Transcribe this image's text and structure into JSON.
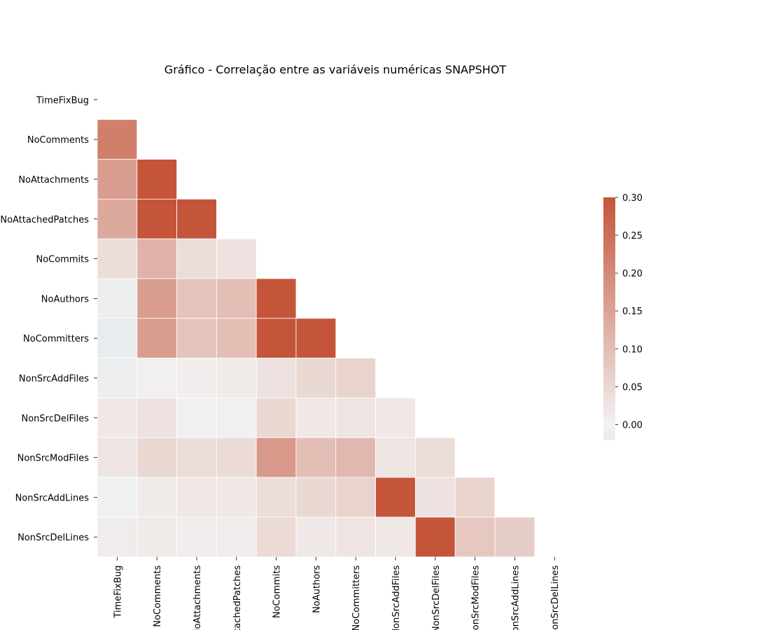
{
  "chart_data": {
    "type": "heatmap",
    "title": "Gráfico - Correlação entre as variáveis numéricas SNAPSHOT",
    "variables": [
      "TimeFixBug",
      "NoComments",
      "NoAttachments",
      "NoAttachedPatches",
      "NoCommits",
      "NoAuthors",
      "NoCommitters",
      "NonSrcAddFiles",
      "NonSrcDelFiles",
      "NonSrcModFiles",
      "NonSrcAddLines",
      "NonSrcDelLines"
    ],
    "x_tick_labels": [
      "TimeFixBug",
      "NoComments",
      "NoAttachments",
      "NoAttachedPatches",
      "NoCommits",
      "NoAuthors",
      "NoCommitters",
      "NonSrcAddFiles",
      "NonSrcDelFiles",
      "NonSrcModFiles",
      "NonSrcAddLines",
      "NonSrcDelLines"
    ],
    "y_tick_labels": [
      "TimeFixBug",
      "NoComments",
      "NoAttachments",
      "NoAttachedPatches",
      "NoCommits",
      "NoAuthors",
      "NoCommitters",
      "NonSrcAddFiles",
      "NonSrcDelFiles",
      "NonSrcModFiles",
      "NonSrcAddLines",
      "NonSrcDelLines"
    ],
    "mask": "upper-triangle-including-diagonal",
    "matrix": [
      [
        null,
        null,
        null,
        null,
        null,
        null,
        null,
        null,
        null,
        null,
        null,
        null
      ],
      [
        0.22,
        null,
        null,
        null,
        null,
        null,
        null,
        null,
        null,
        null,
        null,
        null
      ],
      [
        0.16,
        0.3,
        null,
        null,
        null,
        null,
        null,
        null,
        null,
        null,
        null,
        null
      ],
      [
        0.14,
        0.3,
        0.3,
        null,
        null,
        null,
        null,
        null,
        null,
        null,
        null,
        null
      ],
      [
        0.04,
        0.12,
        0.04,
        0.03,
        null,
        null,
        null,
        null,
        null,
        null,
        null,
        null
      ],
      [
        -0.01,
        0.16,
        0.09,
        0.1,
        0.3,
        null,
        null,
        null,
        null,
        null,
        null,
        null
      ],
      [
        -0.015,
        0.16,
        0.09,
        0.1,
        0.3,
        0.3,
        null,
        null,
        null,
        null,
        null,
        null
      ],
      [
        -0.01,
        0.005,
        0.008,
        0.015,
        0.03,
        0.05,
        0.06,
        null,
        null,
        null,
        null,
        null
      ],
      [
        0.02,
        0.03,
        0.004,
        0.004,
        0.05,
        0.02,
        0.025,
        0.02,
        null,
        null,
        null,
        null
      ],
      [
        0.025,
        0.05,
        0.04,
        0.045,
        0.17,
        0.1,
        0.11,
        0.025,
        0.04,
        null,
        null,
        null
      ],
      [
        -0.003,
        0.015,
        0.02,
        0.02,
        0.04,
        0.05,
        0.06,
        0.3,
        0.03,
        0.06,
        null,
        null
      ],
      [
        0.012,
        0.016,
        0.01,
        0.012,
        0.045,
        0.02,
        0.025,
        0.02,
        0.3,
        0.08,
        0.07,
        null
      ]
    ],
    "colorbar": {
      "vmin": -0.02,
      "vmax": 0.3,
      "ticks": [
        0.3,
        0.25,
        0.2,
        0.15,
        0.1,
        0.05,
        0.0
      ],
      "tick_labels": [
        "0.30",
        "0.25",
        "0.20",
        "0.15",
        "0.10",
        "0.05",
        "0.00"
      ],
      "colormap": "diverging_palette(230, 20)",
      "low_color": "#e5eaed",
      "mid_color": "#f2f2f2",
      "high_color": "#c4553a"
    },
    "grid": false,
    "legend": "colorbar-right"
  }
}
